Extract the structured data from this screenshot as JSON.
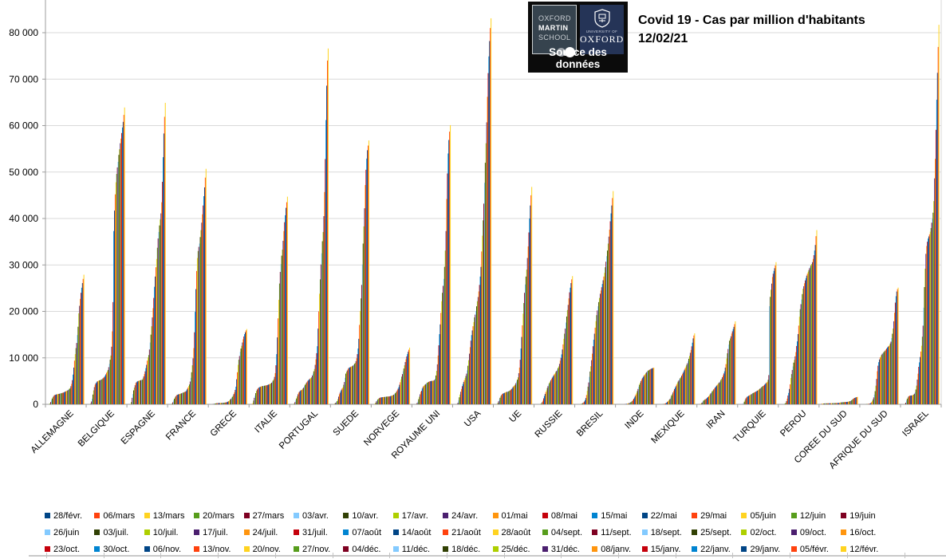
{
  "header": {
    "title_line1": "Covid 19 - Cas par million d'habitants",
    "title_line2": "12/02/21"
  },
  "logo": {
    "tile1_line1": "OXFORD",
    "tile1_line2": "MARTIN",
    "tile1_line3": "SCHOOL",
    "tile2_small": "UNIVERSITY OF",
    "tile2_large": "OXFORD",
    "caption": "Source des données"
  },
  "chart_data": {
    "type": "bar",
    "title": "Covid 19 - Cas par million d'habitants 12/02/21",
    "xlabel": "",
    "ylabel": "",
    "ylim": [
      0,
      87000
    ],
    "ytick_step": 10000,
    "ytick_labels": [
      "0",
      "10 000",
      "20 000",
      "30 000",
      "40 000",
      "50 000",
      "60 000",
      "70 000",
      "80 000"
    ],
    "grid": true,
    "legend_position": "bottom",
    "orientation": "categories are countries on the x-axis; each country group contains 51 weekly bars (cumulative Covid-19 cases per million); bar colors cycle through the 12-color palette by date index",
    "palette": [
      "#004586",
      "#FF420E",
      "#FFD320",
      "#579D1C",
      "#7E0021",
      "#83CAFF",
      "#314004",
      "#AECF00",
      "#4B1F6F",
      "#FF950E",
      "#C5000B",
      "#0084D1"
    ],
    "categories": [
      "ALLEMAGNE",
      "BELGIQUE",
      "ESPAGNE",
      "FRANCE",
      "GRECE",
      "ITALIE",
      "PORTUGAL",
      "SUEDE",
      "NORVEGE",
      "ROYAUME UNI",
      "USA",
      "UE",
      "RUSSIE",
      "BRESIL",
      "INDE",
      "MEXIQUE",
      "IRAN",
      "TURQUIE",
      "PEROU",
      "COREE DU SUD",
      "AFRIQUE DU SUD",
      "ISRAEL"
    ],
    "series_labels": [
      "28/févr.",
      "06/mars",
      "13/mars",
      "20/mars",
      "27/mars",
      "03/avr.",
      "10/avr.",
      "17/avr.",
      "24/avr.",
      "01/mai",
      "08/mai",
      "15/mai",
      "22/mai",
      "29/mai",
      "05/juin",
      "12/juin",
      "19/juin",
      "26/juin",
      "03/juil.",
      "10/juil.",
      "17/juil.",
      "24/juil.",
      "31/juil.",
      "07/août",
      "14/août",
      "21/août",
      "28/août",
      "04/sept.",
      "11/sept.",
      "18/sept.",
      "25/sept.",
      "02/oct.",
      "09/oct.",
      "16/oct.",
      "23/oct.",
      "30/oct.",
      "06/nov.",
      "13/nov.",
      "20/nov.",
      "27/nov.",
      "04/déc.",
      "11/déc.",
      "18/déc.",
      "25/déc.",
      "31/déc.",
      "08/janv.",
      "15/janv.",
      "22/janv.",
      "29/janv.",
      "05/févr.",
      "12/févr."
    ],
    "values": {
      "ALLEMAGNE": [
        1,
        10,
        40,
        160,
        500,
        930,
        1250,
        1550,
        1780,
        1950,
        2020,
        2080,
        2130,
        2170,
        2200,
        2240,
        2270,
        2310,
        2350,
        2400,
        2450,
        2500,
        2550,
        2640,
        2720,
        2800,
        2880,
        2950,
        3060,
        3180,
        3330,
        3500,
        3900,
        4400,
        5200,
        6400,
        7900,
        9400,
        10800,
        12100,
        13200,
        14900,
        16700,
        19600,
        21200,
        22700,
        24000,
        25100,
        26100,
        27000,
        27900
      ],
      "BELGIQUE": [
        1,
        5,
        30,
        150,
        600,
        1200,
        2100,
        3000,
        3700,
        4200,
        4500,
        4700,
        4900,
        5000,
        5100,
        5150,
        5200,
        5280,
        5350,
        5450,
        5600,
        5750,
        5900,
        6150,
        6450,
        6800,
        7100,
        7400,
        8000,
        8700,
        9600,
        10500,
        12400,
        15700,
        22000,
        37300,
        41700,
        45200,
        47800,
        49600,
        51000,
        52200,
        53700,
        54900,
        56200,
        57200,
        58400,
        59600,
        60800,
        62300,
        63900
      ],
      "ESPAGNE": [
        1,
        15,
        100,
        500,
        1400,
        2200,
        3000,
        3600,
        4100,
        4550,
        4750,
        4900,
        5000,
        5050,
        5100,
        5150,
        5200,
        5250,
        5300,
        5600,
        6000,
        6500,
        7100,
        7800,
        8500,
        9400,
        10100,
        10600,
        11800,
        13300,
        15000,
        16800,
        18700,
        20700,
        22900,
        25300,
        27500,
        29500,
        31300,
        33700,
        35700,
        37100,
        38500,
        39800,
        41100,
        43500,
        47900,
        53200,
        58300,
        61900,
        64900
      ],
      "FRANCE": [
        1,
        10,
        40,
        150,
        450,
        840,
        1180,
        1480,
        1730,
        1940,
        2030,
        2100,
        2160,
        2210,
        2250,
        2310,
        2370,
        2430,
        2500,
        2570,
        2640,
        2710,
        2790,
        3000,
        3300,
        3600,
        3950,
        4270,
        4900,
        5700,
        6900,
        8400,
        9900,
        12100,
        15500,
        19900,
        24800,
        28700,
        31500,
        33000,
        33900,
        34600,
        36000,
        37500,
        39100,
        40900,
        42800,
        44800,
        46700,
        48800,
        50700
      ],
      "GRECE": [
        0,
        5,
        15,
        40,
        85,
        130,
        170,
        200,
        230,
        250,
        260,
        265,
        270,
        275,
        280,
        290,
        300,
        315,
        330,
        350,
        375,
        400,
        430,
        500,
        580,
        680,
        820,
        1000,
        1180,
        1380,
        1600,
        1850,
        2200,
        2600,
        3100,
        3800,
        5400,
        6900,
        8500,
        9600,
        10400,
        11300,
        12000,
        12600,
        13300,
        14000,
        14600,
        15100,
        15500,
        15900,
        16200
      ],
      "ITALIE": [
        15,
        60,
        250,
        800,
        1400,
        1840,
        2400,
        2900,
        3200,
        3430,
        3560,
        3660,
        3740,
        3810,
        3870,
        3910,
        3940,
        3970,
        4000,
        4030,
        4060,
        4090,
        4130,
        4200,
        4270,
        4340,
        4410,
        4480,
        4650,
        4850,
        5100,
        5400,
        5900,
        6700,
        8400,
        10800,
        14400,
        18500,
        22500,
        26000,
        28500,
        30200,
        32000,
        33300,
        35200,
        37300,
        39200,
        40700,
        42300,
        43500,
        44700
      ],
      "PORTUGAL": [
        0,
        5,
        30,
        150,
        500,
        880,
        1250,
        1700,
        2150,
        2500,
        2700,
        2850,
        3000,
        3100,
        3200,
        3400,
        3600,
        3900,
        4200,
        4450,
        4700,
        4900,
        5100,
        5250,
        5400,
        5550,
        5700,
        5800,
        6200,
        6600,
        7100,
        7600,
        8500,
        9700,
        11000,
        12500,
        16300,
        20000,
        23800,
        26900,
        30100,
        32500,
        35100,
        37100,
        40500,
        45700,
        52800,
        61200,
        68600,
        74000,
        76600
      ],
      "SUEDE": [
        1,
        10,
        50,
        200,
        350,
        480,
        700,
        1100,
        1650,
        2150,
        2500,
        2850,
        3150,
        3450,
        3700,
        4200,
        4800,
        5700,
        6600,
        7000,
        7300,
        7600,
        7800,
        7900,
        8000,
        8100,
        8150,
        8200,
        8350,
        8500,
        8700,
        8900,
        9300,
        9900,
        10800,
        12000,
        14100,
        17100,
        20100,
        22800,
        25700,
        30100,
        34600,
        38300,
        42200,
        47200,
        50500,
        52900,
        54700,
        55700,
        56800
      ],
      "NORVEGE": [
        4,
        30,
        120,
        350,
        650,
        890,
        1050,
        1220,
        1340,
        1430,
        1470,
        1500,
        1530,
        1545,
        1560,
        1580,
        1600,
        1625,
        1650,
        1660,
        1670,
        1685,
        1700,
        1740,
        1790,
        1840,
        1900,
        1950,
        2070,
        2200,
        2370,
        2570,
        2800,
        3050,
        3350,
        3700,
        4200,
        4750,
        5350,
        5950,
        6500,
        7100,
        7700,
        8400,
        9100,
        9700,
        10300,
        10800,
        11300,
        11750,
        12200
      ],
      "ROYAUME UNI": [
        0,
        3,
        15,
        60,
        300,
        570,
        1100,
        1630,
        2150,
        2650,
        2900,
        3400,
        3700,
        3950,
        4100,
        4250,
        4350,
        4500,
        4660,
        4750,
        4830,
        4900,
        4970,
        5000,
        5030,
        5060,
        5080,
        5100,
        5250,
        5500,
        6200,
        7200,
        8600,
        10500,
        12700,
        15100,
        17200,
        19700,
        22200,
        24000,
        25500,
        27000,
        29600,
        33100,
        37300,
        44200,
        49700,
        54000,
        56900,
        58700,
        60100
      ],
      "USA": [
        0,
        1,
        6,
        58,
        310,
        830,
        1500,
        2100,
        2700,
        3300,
        3900,
        4350,
        4800,
        5200,
        5650,
        6100,
        6600,
        7300,
        8300,
        9500,
        10900,
        12300,
        13700,
        14900,
        15900,
        16800,
        17700,
        18700,
        19300,
        20100,
        21100,
        22200,
        23100,
        24300,
        25700,
        27500,
        29600,
        32900,
        36300,
        39600,
        43200,
        47700,
        52000,
        56200,
        60700,
        66200,
        71300,
        74900,
        78200,
        81000,
        83100
      ],
      "UE": [
        2,
        15,
        70,
        300,
        650,
        960,
        1400,
        1750,
        2000,
        2200,
        2300,
        2380,
        2450,
        2530,
        2600,
        2650,
        2700,
        2750,
        2800,
        2900,
        3000,
        3150,
        3300,
        3500,
        3700,
        3900,
        4050,
        4200,
        4550,
        4900,
        5300,
        5800,
        6700,
        7900,
        9600,
        12000,
        14500,
        17000,
        19500,
        21800,
        24000,
        25800,
        27500,
        29000,
        31500,
        34000,
        37000,
        40000,
        42800,
        45000,
        46800
      ],
      "RUSSIE": [
        0,
        0,
        1,
        3,
        7,
        28,
        80,
        220,
        470,
        780,
        1290,
        1800,
        2230,
        2650,
        3020,
        3500,
        3900,
        4250,
        4570,
        4880,
        5200,
        5480,
        5750,
        6000,
        6250,
        6480,
        6710,
        7000,
        7200,
        7450,
        7800,
        8150,
        8700,
        9400,
        10000,
        10750,
        11800,
        12900,
        14100,
        15200,
        16300,
        17600,
        18900,
        20300,
        21400,
        22800,
        24100,
        25100,
        26100,
        26900,
        27600
      ],
      "BRESIL": [
        0,
        0,
        1,
        5,
        15,
        30,
        90,
        180,
        290,
        410,
        600,
        900,
        1350,
        2000,
        2890,
        3800,
        4700,
        5900,
        7050,
        8200,
        9500,
        10900,
        12500,
        13900,
        15200,
        16500,
        17900,
        19200,
        20200,
        21100,
        22000,
        22900,
        23800,
        24500,
        25200,
        25900,
        26700,
        27500,
        28300,
        29500,
        30700,
        31900,
        33100,
        34600,
        36100,
        37600,
        39400,
        41100,
        42800,
        44400,
        45900
      ],
      "INDE": [
        0,
        0,
        0,
        0,
        1,
        2,
        5,
        10,
        17,
        25,
        43,
        62,
        90,
        125,
        165,
        216,
        286,
        369,
        455,
        575,
        725,
        935,
        1190,
        1470,
        1780,
        2110,
        2460,
        2855,
        3300,
        3775,
        4220,
        4630,
        5010,
        5340,
        5620,
        5860,
        6095,
        6325,
        6520,
        6745,
        6930,
        7100,
        7245,
        7370,
        7440,
        7555,
        7640,
        7700,
        7775,
        7830,
        7890
      ],
      "MEXIQUE": [
        0,
        0,
        0,
        1,
        4,
        12,
        30,
        55,
        100,
        155,
        230,
        340,
        500,
        660,
        853,
        1000,
        1180,
        1500,
        1900,
        2200,
        2550,
        2900,
        3290,
        3600,
        3900,
        4250,
        4560,
        4880,
        5130,
        5380,
        5610,
        5840,
        6160,
        6480,
        6800,
        7120,
        7450,
        7800,
        8150,
        8500,
        8840,
        9300,
        9800,
        10400,
        11090,
        11700,
        12480,
        13260,
        14190,
        14810,
        15270
      ],
      "IRAN": [
        7,
        56,
        130,
        240,
        385,
        630,
        810,
        945,
        1060,
        1130,
        1240,
        1390,
        1560,
        1740,
        1960,
        2150,
        2380,
        2600,
        2800,
        3000,
        3210,
        3390,
        3620,
        3830,
        4020,
        4210,
        4390,
        4570,
        4730,
        4940,
        5240,
        5490,
        5820,
        6210,
        6630,
        7100,
        7890,
        8650,
        9860,
        10980,
        11900,
        12860,
        13690,
        14170,
        14640,
        15240,
        15710,
        16190,
        16670,
        17260,
        17860
      ],
      "TURQUIE": [
        0,
        0,
        0,
        4,
        68,
        250,
        560,
        940,
        1270,
        1470,
        1625,
        1730,
        1830,
        1930,
        1990,
        2090,
        2210,
        2300,
        2410,
        2490,
        2570,
        2660,
        2730,
        2820,
        2920,
        3030,
        3130,
        3270,
        3420,
        3560,
        3700,
        3820,
        3940,
        4050,
        4210,
        4390,
        4540,
        4700,
        4850,
        5280,
        6290,
        21120,
        23130,
        24670,
        25980,
        27400,
        28110,
        28710,
        29300,
        29890,
        30600
      ],
      "PEROU": [
        0,
        0,
        1,
        5,
        20,
        48,
        150,
        350,
        700,
        1210,
        1880,
        2450,
        3300,
        4300,
        5670,
        6500,
        7390,
        8150,
        8970,
        9580,
        10330,
        11240,
        12550,
        13550,
        15120,
        16940,
        18850,
        20480,
        21550,
        22550,
        23730,
        24880,
        25420,
        26060,
        26670,
        27180,
        27700,
        28120,
        28520,
        28880,
        29300,
        29610,
        29910,
        30210,
        30600,
        31300,
        32100,
        33100,
        34300,
        36200,
        37500
      ],
      "COREE DU SUD": [
        44,
        127,
        154,
        170,
        180,
        195,
        198,
        201,
        204,
        208,
        211,
        214,
        217,
        221,
        226,
        231,
        237,
        244,
        251,
        257,
        263,
        270,
        276,
        284,
        295,
        325,
        360,
        405,
        425,
        445,
        455,
        463,
        475,
        487,
        499,
        512,
        530,
        555,
        590,
        640,
        700,
        790,
        900,
        1020,
        1170,
        1280,
        1370,
        1440,
        1500,
        1550,
        1600
      ],
      "AFRIQUE DU SUD": [
        0,
        0,
        1,
        3,
        10,
        25,
        35,
        50,
        70,
        94,
        130,
        180,
        280,
        450,
        725,
        1050,
        1480,
        2090,
        2830,
        4010,
        5460,
        7120,
        8310,
        9070,
        9650,
        10100,
        10420,
        10670,
        10890,
        11040,
        11230,
        11420,
        11570,
        11800,
        11990,
        12230,
        12410,
        12560,
        12770,
        13090,
        13490,
        14260,
        15190,
        16320,
        17880,
        19720,
        21890,
        23270,
        24280,
        24780,
        25120
      ],
      "ISRAEL": [
        0,
        2,
        14,
        80,
        340,
        840,
        1180,
        1470,
        1700,
        1830,
        1860,
        1890,
        1900,
        1930,
        2000,
        2090,
        2280,
        2590,
        3180,
        4020,
        5320,
        6590,
        8070,
        9030,
        10180,
        11360,
        12610,
        14550,
        16930,
        20800,
        25230,
        29200,
        32390,
        34090,
        35000,
        35680,
        36140,
        36590,
        37160,
        37950,
        39090,
        39890,
        41250,
        43750,
        48640,
        52840,
        59090,
        65570,
        71360,
        76930,
        81700
      ]
    }
  }
}
